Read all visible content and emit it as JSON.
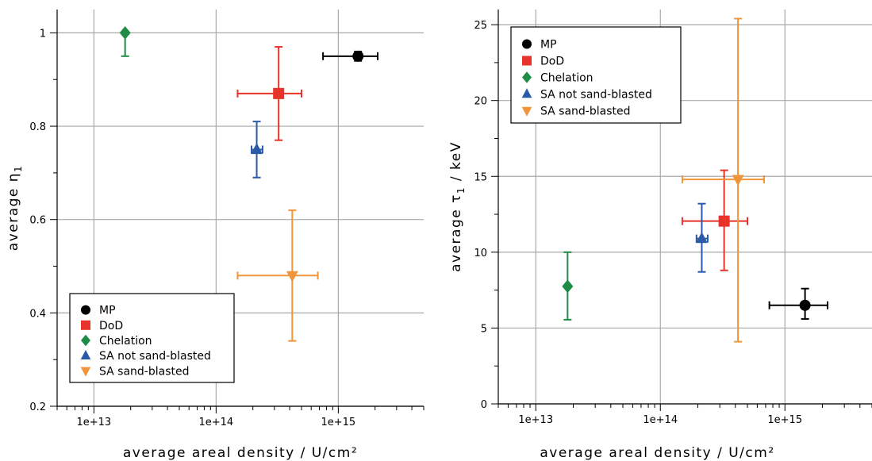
{
  "chart_data": [
    {
      "type": "scatter",
      "xlabel": "average areal density / U/cm²",
      "ylabel": "average η",
      "ylabel_subscript": "1",
      "x_scale": "log",
      "xlim": [
        5000000000000.0,
        5000000000000000.0
      ],
      "ylim": [
        0.2,
        1.05
      ],
      "x_ticks": [
        10000000000000.0,
        100000000000000.0,
        1000000000000000.0
      ],
      "x_tick_labels": [
        "1e+13",
        "1e+14",
        "1e+15"
      ],
      "y_ticks": [
        0.2,
        0.4,
        0.6,
        0.8,
        1.0
      ],
      "y_tick_labels": [
        "0.2",
        "0.4",
        "0.6",
        "0.8",
        "1"
      ],
      "grid": true,
      "legend_position": "bottom-left",
      "series": [
        {
          "name": "MP",
          "marker": "circle",
          "color": "#000000",
          "x": 1450000000000000.0,
          "y": 0.95,
          "xerr": [
            1400000000000000.0,
            1400000000000000.0,
            1400000000000000.0
          ],
          "xlo": 750000000000000.0,
          "xhi": 2100000000000000.0,
          "ylo": 0.94,
          "yhi": 0.96
        },
        {
          "name": "DoD",
          "marker": "square",
          "color": "#e8332a",
          "x": 325000000000000.0,
          "y": 0.87,
          "xlo": 150000000000000.0,
          "xhi": 500000000000000.0,
          "ylo": 0.77,
          "yhi": 0.97
        },
        {
          "name": "Chelation",
          "marker": "diamond",
          "color": "#1e8c45",
          "x": 18000000000000.0,
          "y": 1.0,
          "xlo": 18000000000000.0,
          "xhi": 18000000000000.0,
          "ylo": 0.95,
          "yhi": 1.0
        },
        {
          "name": "SA not sand-blasted",
          "marker": "triangle-up",
          "color": "#2a5aa8",
          "x": 215000000000000.0,
          "y": 0.75,
          "xlo": 195000000000000.0,
          "xhi": 240000000000000.0,
          "ylo": 0.69,
          "yhi": 0.81
        },
        {
          "name": "SA sand-blasted",
          "marker": "triangle-down",
          "color": "#f0953a",
          "x": 420000000000000.0,
          "y": 0.48,
          "xlo": 150000000000000.0,
          "xhi": 680000000000000.0,
          "ylo": 0.34,
          "yhi": 0.62
        }
      ]
    },
    {
      "type": "scatter",
      "xlabel": "average areal density / U/cm²",
      "ylabel": "average τ",
      "ylabel_subscript": "1",
      "ylabel_suffix": " / keV",
      "x_scale": "log",
      "xlim": [
        5000000000000.0,
        5000000000000000.0
      ],
      "ylim": [
        0,
        26
      ],
      "x_ticks": [
        10000000000000.0,
        100000000000000.0,
        1000000000000000.0
      ],
      "x_tick_labels": [
        "1e+13",
        "1e+14",
        "1e+15"
      ],
      "y_ticks": [
        0,
        5,
        10,
        15,
        20,
        25
      ],
      "y_tick_labels": [
        "0",
        "5",
        "10",
        "15",
        "20",
        "25"
      ],
      "grid": true,
      "legend_position": "top-left",
      "series": [
        {
          "name": "MP",
          "marker": "circle",
          "color": "#000000",
          "x": 1450000000000000.0,
          "y": 6.5,
          "xlo": 750000000000000.0,
          "xhi": 2200000000000000.0,
          "ylo": 5.6,
          "yhi": 7.6
        },
        {
          "name": "DoD",
          "marker": "square",
          "color": "#e8332a",
          "x": 325000000000000.0,
          "y": 12.05,
          "xlo": 150000000000000.0,
          "xhi": 500000000000000.0,
          "ylo": 8.8,
          "yhi": 15.4
        },
        {
          "name": "Chelation",
          "marker": "diamond",
          "color": "#1e8c45",
          "x": 18000000000000.0,
          "y": 7.75,
          "xlo": 18000000000000.0,
          "xhi": 18000000000000.0,
          "ylo": 5.55,
          "yhi": 10.0
        },
        {
          "name": "SA not sand-blasted",
          "marker": "triangle-up",
          "color": "#2a5aa8",
          "x": 215000000000000.0,
          "y": 10.9,
          "xlo": 195000000000000.0,
          "xhi": 240000000000000.0,
          "ylo": 8.7,
          "yhi": 13.2
        },
        {
          "name": "SA sand-blasted",
          "marker": "triangle-down",
          "color": "#f0953a",
          "x": 420000000000000.0,
          "y": 14.8,
          "xlo": 150000000000000.0,
          "xhi": 680000000000000.0,
          "ylo": 4.1,
          "yhi": 25.4
        }
      ]
    }
  ]
}
